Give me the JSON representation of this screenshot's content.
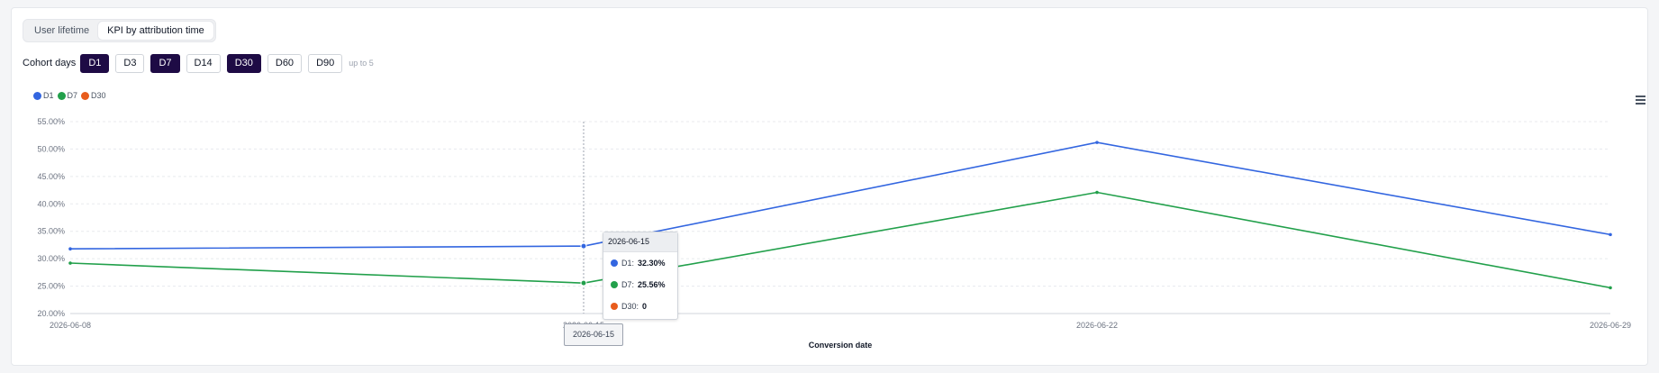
{
  "tabs": [
    {
      "label": "User lifetime",
      "active": false
    },
    {
      "label": "KPI by attribution time",
      "active": true
    }
  ],
  "cohort": {
    "label": "Cohort days",
    "options": [
      {
        "label": "D1",
        "selected": true
      },
      {
        "label": "D3",
        "selected": false
      },
      {
        "label": "D7",
        "selected": true
      },
      {
        "label": "D14",
        "selected": false
      },
      {
        "label": "D30",
        "selected": true
      },
      {
        "label": "D60",
        "selected": false
      },
      {
        "label": "D90",
        "selected": false
      }
    ],
    "hint": "up to 5"
  },
  "legend": [
    {
      "label": "D1",
      "color": "#3366e0"
    },
    {
      "label": "D7",
      "color": "#22a04b"
    },
    {
      "label": "D30",
      "color": "#e85c1c"
    }
  ],
  "tooltip": {
    "date": "2026-06-15",
    "rows": [
      {
        "name": "D1:",
        "value": "32.30%",
        "color": "#3366e0"
      },
      {
        "name": "D7:",
        "value": "25.56%",
        "color": "#22a04b"
      },
      {
        "name": "D30:",
        "value": "0",
        "color": "#e85c1c"
      }
    ]
  },
  "crosshair_label": "2026-06-15",
  "menu_icon": "hamburger-menu-icon",
  "chart_data": {
    "type": "line",
    "title": "",
    "xlabel": "Conversion date",
    "ylabel": "",
    "x": [
      "2026-06-08",
      "2026-06-15",
      "2026-06-22",
      "2026-06-29"
    ],
    "ylim": [
      20,
      55
    ],
    "y_ticks": [
      20,
      25,
      30,
      35,
      40,
      45,
      50,
      55
    ],
    "y_tick_labels": [
      "20.00%",
      "25.00%",
      "30.00%",
      "35.00%",
      "40.00%",
      "45.00%",
      "50.00%",
      "55.00%"
    ],
    "series": [
      {
        "name": "D1",
        "color": "#3366e0",
        "values": [
          31.8,
          32.3,
          51.2,
          34.4
        ]
      },
      {
        "name": "D7",
        "color": "#22a04b",
        "values": [
          29.2,
          25.56,
          42.1,
          24.7
        ]
      },
      {
        "name": "D30",
        "color": "#e85c1c",
        "values": [
          null,
          null,
          null,
          null
        ]
      }
    ],
    "highlighted_x": "2026-06-15",
    "grid": true,
    "legend_position": "top-left"
  }
}
